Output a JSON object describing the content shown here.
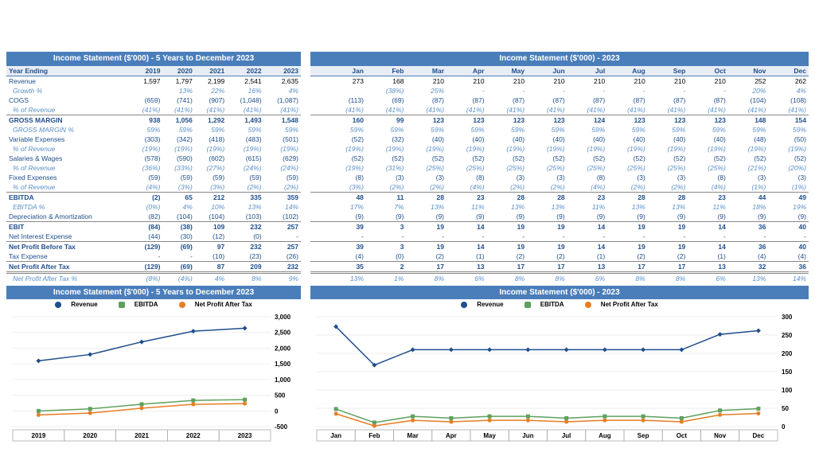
{
  "left": {
    "title": "Income Statement ($'000) - 5 Years to December 2023",
    "header": [
      "Year Ending",
      "2019",
      "2020",
      "2021",
      "2022",
      "2023"
    ],
    "rows": [
      {
        "c": [
          "Revenue",
          "1,597",
          "1,797",
          "2,199",
          "2,541",
          "2,635"
        ],
        "cls": ""
      },
      {
        "c": [
          "Growth %",
          "",
          "13%",
          "22%",
          "16%",
          "4%"
        ],
        "cls": "italic"
      },
      {
        "c": [
          "COGS",
          "(659)",
          "(741)",
          "(907)",
          "(1,048)",
          "(1,087)"
        ],
        "cls": "neg"
      },
      {
        "c": [
          "% of Revenue",
          "(41%)",
          "(41%)",
          "(41%)",
          "(41%)",
          "(41%)"
        ],
        "cls": "italic"
      },
      {
        "c": [
          "GROSS MARGIN",
          "938",
          "1,056",
          "1,292",
          "1,493",
          "1,548"
        ],
        "cls": "bold border-top"
      },
      {
        "c": [
          "GROSS MARGIN %",
          "59%",
          "59%",
          "59%",
          "59%",
          "59%"
        ],
        "cls": "italic"
      },
      {
        "c": [
          "Variable Expenses",
          "(303)",
          "(342)",
          "(418)",
          "(483)",
          "(501)"
        ],
        "cls": "neg"
      },
      {
        "c": [
          "% of Revenue",
          "(19%)",
          "(19%)",
          "(19%)",
          "(19%)",
          "(19%)"
        ],
        "cls": "italic"
      },
      {
        "c": [
          "Salaries & Wages",
          "(578)",
          "(590)",
          "(602)",
          "(615)",
          "(629)"
        ],
        "cls": "neg"
      },
      {
        "c": [
          "% of Revenue",
          "(36%)",
          "(33%)",
          "(27%)",
          "(24%)",
          "(24%)"
        ],
        "cls": "italic"
      },
      {
        "c": [
          "Fixed Expenses",
          "(59)",
          "(59)",
          "(59)",
          "(59)",
          "(59)"
        ],
        "cls": "neg"
      },
      {
        "c": [
          "% of Revenue",
          "(4%)",
          "(3%)",
          "(3%)",
          "(2%)",
          "(2%)"
        ],
        "cls": "italic"
      },
      {
        "c": [
          "EBITDA",
          "(2)",
          "65",
          "212",
          "335",
          "359"
        ],
        "cls": "bold border-top"
      },
      {
        "c": [
          "EBITDA %",
          "(0%)",
          "4%",
          "10%",
          "13%",
          "14%"
        ],
        "cls": "italic"
      },
      {
        "c": [
          "Depreciation & Amortization",
          "(82)",
          "(104)",
          "(104)",
          "(103)",
          "(102)"
        ],
        "cls": "neg"
      },
      {
        "c": [
          "EBIT",
          "(84)",
          "(38)",
          "109",
          "232",
          "257"
        ],
        "cls": "bold border-top"
      },
      {
        "c": [
          "Net Interest Expense",
          "(44)",
          "(30)",
          "(12)",
          "(0)",
          "-"
        ],
        "cls": "neg"
      },
      {
        "c": [
          "Net Profit Before Tax",
          "(129)",
          "(69)",
          "97",
          "232",
          "257"
        ],
        "cls": "bold border-top"
      },
      {
        "c": [
          "Tax Expense",
          "-",
          "-",
          "(10)",
          "(23)",
          "(26)"
        ],
        "cls": "neg"
      },
      {
        "c": [
          "Net Profit After Tax",
          "(129)",
          "(69)",
          "87",
          "209",
          "232"
        ],
        "cls": "bold border-top dbl"
      },
      {
        "c": [
          "Net Profit After Tax %",
          "(8%)",
          "(4%)",
          "4%",
          "8%",
          "9%"
        ],
        "cls": "italic"
      }
    ],
    "chart": {
      "title": "Income Statement ($'000) - 5 Years to December 2023",
      "legend": [
        "Revenue",
        "EBITDA",
        "Net Profit After Tax"
      ],
      "x": [
        "2019",
        "2020",
        "2021",
        "2022",
        "2023"
      ],
      "ylim": [
        -500,
        3000
      ],
      "ystep": 500,
      "rev": [
        1597,
        1797,
        2199,
        2541,
        2635
      ],
      "ebi": [
        -2,
        65,
        212,
        335,
        359
      ],
      "npt": [
        -129,
        -69,
        87,
        209,
        232
      ],
      "colors": {
        "rev": "#1f4e8c",
        "ebi": "#5fa05f",
        "npt": "#e67e22"
      }
    }
  },
  "right": {
    "title": "Income Statement ($'000) - 2023",
    "header": [
      "",
      "Jan",
      "Feb",
      "Mar",
      "Apr",
      "May",
      "Jun",
      "Jul",
      "Aug",
      "Sep",
      "Oct",
      "Nov",
      "Dec"
    ],
    "rows": [
      {
        "c": [
          "",
          "273",
          "168",
          "210",
          "210",
          "210",
          "210",
          "210",
          "210",
          "210",
          "210",
          "252",
          "262"
        ],
        "cls": ""
      },
      {
        "c": [
          "",
          "",
          "(38%)",
          "25%",
          "-",
          "-",
          "-",
          "-",
          "-",
          "-",
          "-",
          "20%",
          "4%"
        ],
        "cls": "italic"
      },
      {
        "c": [
          "",
          "(113)",
          "(69)",
          "(87)",
          "(87)",
          "(87)",
          "(87)",
          "(87)",
          "(87)",
          "(87)",
          "(87)",
          "(104)",
          "(108)"
        ],
        "cls": "neg"
      },
      {
        "c": [
          "",
          "(41%)",
          "(41%)",
          "(41%)",
          "(41%)",
          "(41%)",
          "(41%)",
          "(41%)",
          "(41%)",
          "(41%)",
          "(41%)",
          "(41%)",
          "(41%)"
        ],
        "cls": "italic"
      },
      {
        "c": [
          "",
          "160",
          "99",
          "123",
          "123",
          "123",
          "123",
          "124",
          "123",
          "123",
          "123",
          "148",
          "154"
        ],
        "cls": "bold border-top"
      },
      {
        "c": [
          "",
          "59%",
          "59%",
          "59%",
          "59%",
          "59%",
          "59%",
          "59%",
          "59%",
          "59%",
          "59%",
          "59%",
          "59%"
        ],
        "cls": "italic"
      },
      {
        "c": [
          "",
          "(52)",
          "(32)",
          "(40)",
          "(40)",
          "(40)",
          "(40)",
          "(40)",
          "(40)",
          "(40)",
          "(40)",
          "(48)",
          "(50)"
        ],
        "cls": "neg"
      },
      {
        "c": [
          "",
          "(19%)",
          "(19%)",
          "(19%)",
          "(19%)",
          "(19%)",
          "(19%)",
          "(19%)",
          "(19%)",
          "(19%)",
          "(19%)",
          "(19%)",
          "(19%)"
        ],
        "cls": "italic"
      },
      {
        "c": [
          "",
          "(52)",
          "(52)",
          "(52)",
          "(52)",
          "(52)",
          "(52)",
          "(52)",
          "(52)",
          "(52)",
          "(52)",
          "(52)",
          "(52)"
        ],
        "cls": "neg"
      },
      {
        "c": [
          "",
          "(19%)",
          "(31%)",
          "(25%)",
          "(25%)",
          "(25%)",
          "(25%)",
          "(25%)",
          "(25%)",
          "(25%)",
          "(25%)",
          "(21%)",
          "(20%)"
        ],
        "cls": "italic"
      },
      {
        "c": [
          "",
          "(8)",
          "(3)",
          "(3)",
          "(8)",
          "(3)",
          "(3)",
          "(8)",
          "(3)",
          "(3)",
          "(8)",
          "(3)",
          "(3)"
        ],
        "cls": "neg"
      },
      {
        "c": [
          "",
          "(3%)",
          "(2%)",
          "(2%)",
          "(4%)",
          "(2%)",
          "(2%)",
          "(4%)",
          "(2%)",
          "(2%)",
          "(4%)",
          "(1%)",
          "(1%)"
        ],
        "cls": "italic"
      },
      {
        "c": [
          "",
          "48",
          "11",
          "28",
          "23",
          "28",
          "28",
          "23",
          "28",
          "28",
          "23",
          "44",
          "49"
        ],
        "cls": "bold border-top"
      },
      {
        "c": [
          "",
          "17%",
          "7%",
          "13%",
          "11%",
          "13%",
          "13%",
          "11%",
          "13%",
          "13%",
          "11%",
          "18%",
          "19%"
        ],
        "cls": "italic"
      },
      {
        "c": [
          "",
          "(9)",
          "(9)",
          "(9)",
          "(9)",
          "(9)",
          "(9)",
          "(9)",
          "(9)",
          "(9)",
          "(9)",
          "(9)",
          "(9)"
        ],
        "cls": "neg"
      },
      {
        "c": [
          "",
          "39",
          "3",
          "19",
          "14",
          "19",
          "19",
          "14",
          "19",
          "19",
          "14",
          "36",
          "40"
        ],
        "cls": "bold border-top"
      },
      {
        "c": [
          "",
          "-",
          "-",
          "-",
          "-",
          "-",
          "-",
          "-",
          "-",
          "-",
          "-",
          "-",
          "-"
        ],
        "cls": "neg"
      },
      {
        "c": [
          "",
          "39",
          "3",
          "19",
          "14",
          "19",
          "19",
          "14",
          "19",
          "19",
          "14",
          "36",
          "40"
        ],
        "cls": "bold border-top"
      },
      {
        "c": [
          "",
          "(4)",
          "(0)",
          "(2)",
          "(1)",
          "(2)",
          "(2)",
          "(1)",
          "(2)",
          "(2)",
          "(1)",
          "(4)",
          "(4)"
        ],
        "cls": "neg"
      },
      {
        "c": [
          "",
          "35",
          "2",
          "17",
          "13",
          "17",
          "17",
          "13",
          "17",
          "17",
          "13",
          "32",
          "36"
        ],
        "cls": "bold border-top dbl"
      },
      {
        "c": [
          "",
          "13%",
          "1%",
          "8%",
          "6%",
          "8%",
          "8%",
          "6%",
          "8%",
          "8%",
          "6%",
          "13%",
          "14%"
        ],
        "cls": "italic"
      }
    ],
    "chart": {
      "title": "Income Statement ($'000) - 2023",
      "legend": [
        "Revenue",
        "EBITDA",
        "Net Profit After Tax"
      ],
      "x": [
        "Jan",
        "Feb",
        "Mar",
        "Apr",
        "May",
        "Jun",
        "Jul",
        "Aug",
        "Sep",
        "Oct",
        "Nov",
        "Dec"
      ],
      "ylim": [
        0,
        300
      ],
      "ystep": 50,
      "rev": [
        273,
        168,
        210,
        210,
        210,
        210,
        210,
        210,
        210,
        210,
        252,
        262
      ],
      "ebi": [
        48,
        11,
        28,
        23,
        28,
        28,
        23,
        28,
        28,
        23,
        44,
        49
      ],
      "npt": [
        35,
        2,
        17,
        13,
        17,
        17,
        13,
        17,
        17,
        13,
        32,
        36
      ],
      "colors": {
        "rev": "#1f4e8c",
        "ebi": "#5fa05f",
        "npt": "#e67e22"
      }
    }
  }
}
